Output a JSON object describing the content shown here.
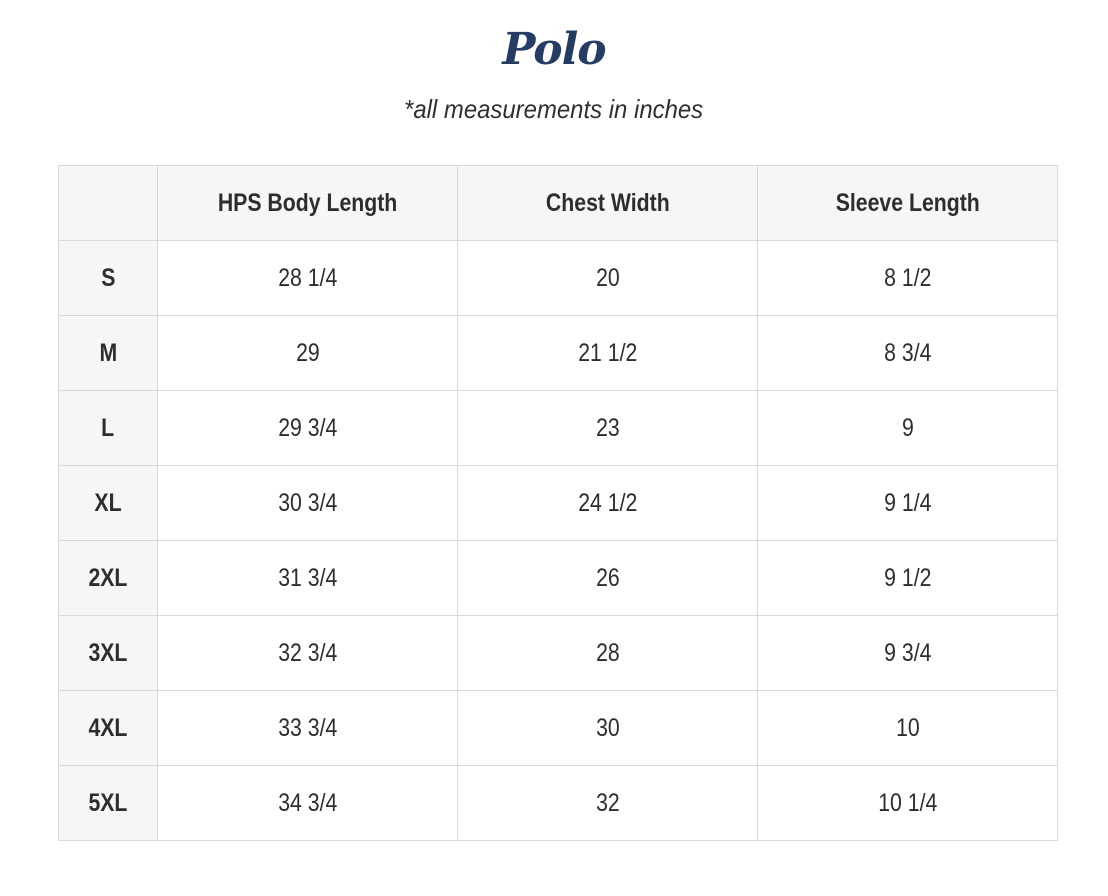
{
  "page": {
    "title": "Polo",
    "subtitle": "*all measurements in inches"
  },
  "colors": {
    "title_navy": "#263c63",
    "header_bg": "#f6f6f6",
    "border": "#d9d9d9",
    "text": "#2d2d2d"
  },
  "table": {
    "headers": [
      "",
      "HPS Body Length",
      "Chest Width",
      "Sleeve Length"
    ],
    "rows": [
      {
        "size": "S",
        "values": [
          "28 1/4",
          "20",
          "8 1/2"
        ]
      },
      {
        "size": "M",
        "values": [
          "29",
          "21 1/2",
          "8 3/4"
        ]
      },
      {
        "size": "L",
        "values": [
          "29 3/4",
          "23",
          "9"
        ]
      },
      {
        "size": "XL",
        "values": [
          "30 3/4",
          "24 1/2",
          "9 1/4"
        ]
      },
      {
        "size": "2XL",
        "values": [
          "31 3/4",
          "26",
          "9 1/2"
        ]
      },
      {
        "size": "3XL",
        "values": [
          "32 3/4",
          "28",
          "9 3/4"
        ]
      },
      {
        "size": "4XL",
        "values": [
          "33 3/4",
          "30",
          "10"
        ]
      },
      {
        "size": "5XL",
        "values": [
          "34 3/4",
          "32",
          "10 1/4"
        ]
      }
    ]
  }
}
